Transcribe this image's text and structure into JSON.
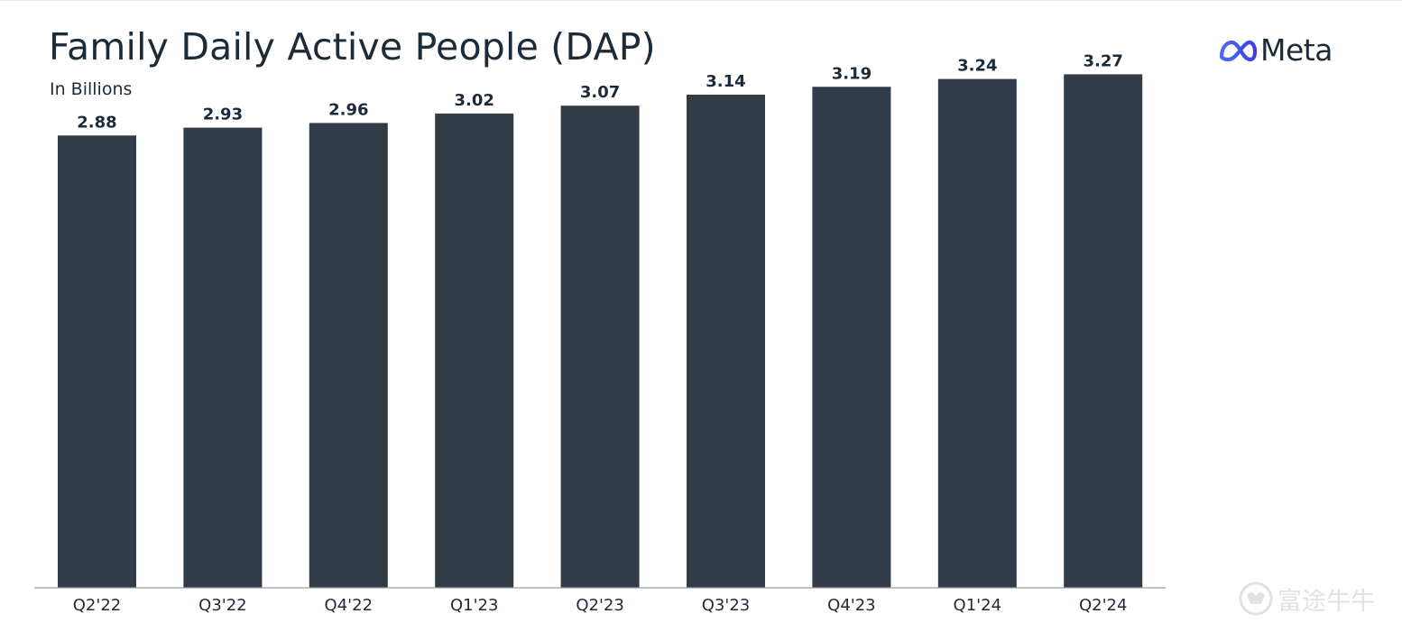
{
  "header": {
    "title": "Family Daily Active People (DAP)",
    "subtitle": "In Billions"
  },
  "logo": {
    "icon": "meta-infinity-icon",
    "text": "Meta",
    "mark_color": "#4a57e8"
  },
  "watermark": {
    "icon": "futu-bull-icon",
    "text": "富途牛牛"
  },
  "colors": {
    "bar": "#323c47",
    "text": "#1c2b39",
    "axis": "#9aa0a6"
  },
  "chart_data": {
    "type": "bar",
    "title": "Family Daily Active People (DAP)",
    "subtitle": "In Billions",
    "xlabel": "",
    "ylabel": "",
    "categories": [
      "Q2'22",
      "Q3'22",
      "Q4'22",
      "Q1'23",
      "Q2'23",
      "Q3'23",
      "Q4'23",
      "Q1'24",
      "Q2'24"
    ],
    "values": [
      2.88,
      2.93,
      2.96,
      3.02,
      3.07,
      3.14,
      3.19,
      3.24,
      3.27
    ],
    "value_labels": [
      "2.88",
      "2.93",
      "2.96",
      "3.02",
      "3.07",
      "3.14",
      "3.19",
      "3.24",
      "3.27"
    ],
    "ylim": [
      0,
      3.4
    ],
    "grid": false,
    "legend": "none",
    "data_labels": true
  }
}
